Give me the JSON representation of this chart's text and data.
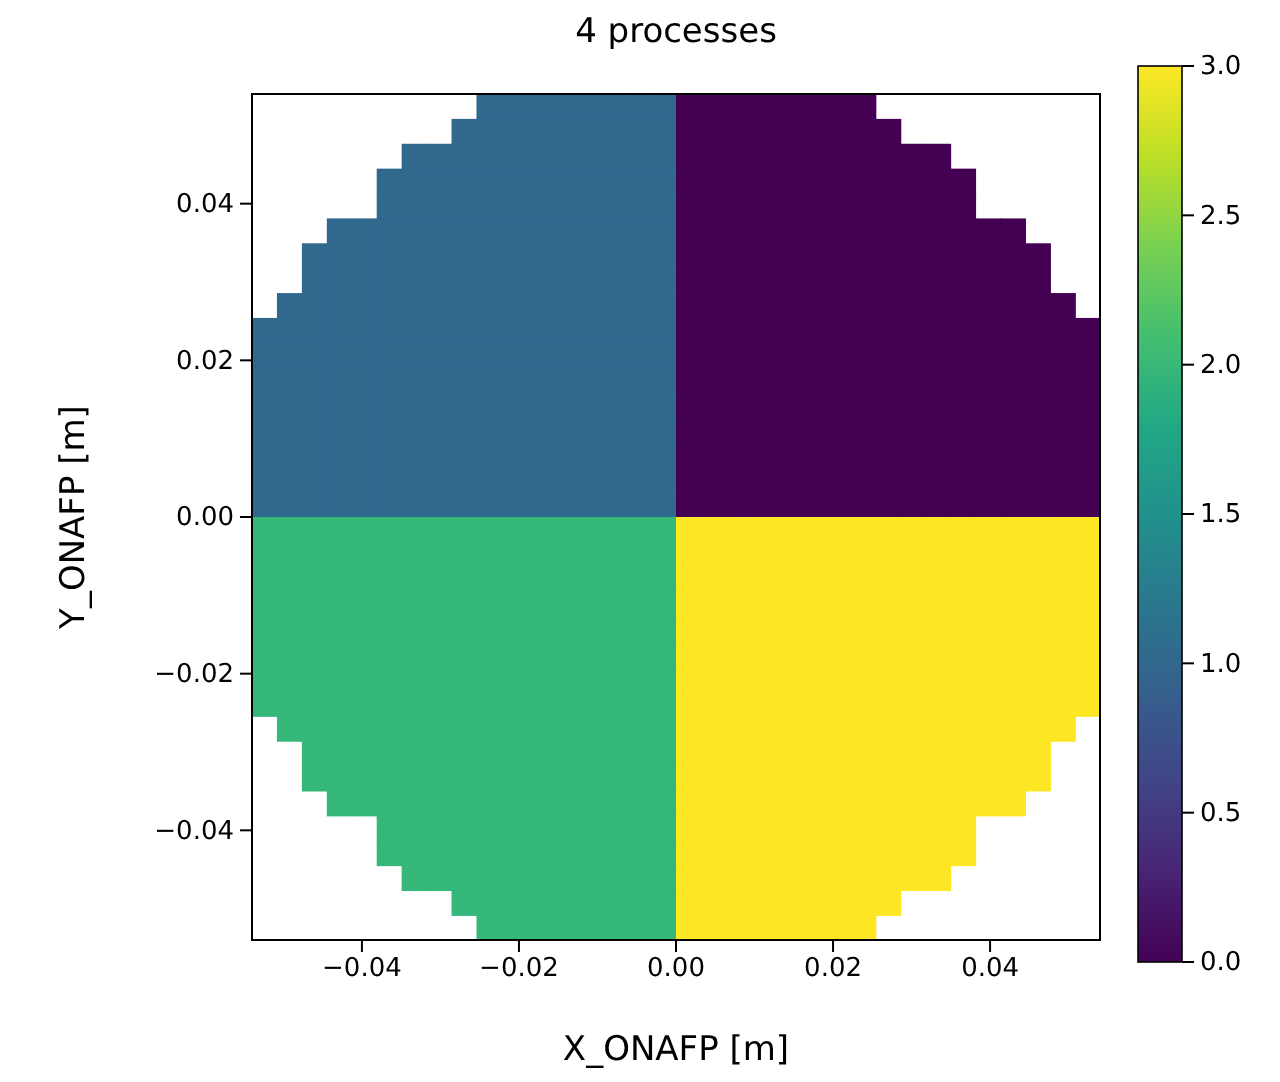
{
  "chart_data": {
    "type": "heatmap",
    "title": "4 processes",
    "xlabel": "X_ONAFP [m]",
    "ylabel": "Y_ONAFP [m]",
    "xlim": [
      -0.054,
      0.054
    ],
    "ylim": [
      -0.054,
      0.054
    ],
    "xticks": [
      {
        "value": -0.04,
        "label": "−0.04"
      },
      {
        "value": -0.02,
        "label": "−0.02"
      },
      {
        "value": 0,
        "label": "0.00"
      },
      {
        "value": 0.02,
        "label": "0.02"
      },
      {
        "value": 0.04,
        "label": "0.04"
      }
    ],
    "yticks": [
      {
        "value": -0.04,
        "label": "−0.04"
      },
      {
        "value": -0.02,
        "label": "−0.02"
      },
      {
        "value": 0,
        "label": "0.00"
      },
      {
        "value": 0.02,
        "label": "0.02"
      },
      {
        "value": 0.04,
        "label": "0.04"
      }
    ],
    "clim": [
      0,
      3
    ],
    "cticks": [
      {
        "value": 0,
        "label": "0.0"
      },
      {
        "value": 0.5,
        "label": "0.5"
      },
      {
        "value": 1,
        "label": "1.0"
      },
      {
        "value": 1.5,
        "label": "1.5"
      },
      {
        "value": 2,
        "label": "2.0"
      },
      {
        "value": 2.5,
        "label": "2.5"
      },
      {
        "value": 3,
        "label": "3.0"
      }
    ],
    "cells": [
      [
        null,
        null,
        null,
        null,
        null,
        null,
        null,
        null,
        null,
        1,
        1,
        1,
        1,
        1,
        1,
        1,
        1,
        0,
        0,
        0,
        0,
        0,
        0,
        0,
        0,
        null,
        null,
        null,
        null,
        null,
        null,
        null,
        null,
        null
      ],
      [
        null,
        null,
        null,
        null,
        null,
        null,
        null,
        null,
        1,
        1,
        1,
        1,
        1,
        1,
        1,
        1,
        1,
        0,
        0,
        0,
        0,
        0,
        0,
        0,
        0,
        0,
        null,
        null,
        null,
        null,
        null,
        null,
        null,
        null
      ],
      [
        null,
        null,
        null,
        null,
        null,
        null,
        1,
        1,
        1,
        1,
        1,
        1,
        1,
        1,
        1,
        1,
        1,
        0,
        0,
        0,
        0,
        0,
        0,
        0,
        0,
        0,
        0,
        0,
        null,
        null,
        null,
        null,
        null,
        null
      ],
      [
        null,
        null,
        null,
        null,
        null,
        1,
        1,
        1,
        1,
        1,
        1,
        1,
        1,
        1,
        1,
        1,
        1,
        0,
        0,
        0,
        0,
        0,
        0,
        0,
        0,
        0,
        0,
        0,
        0,
        null,
        null,
        null,
        null,
        null
      ],
      [
        null,
        null,
        null,
        null,
        null,
        1,
        1,
        1,
        1,
        1,
        1,
        1,
        1,
        1,
        1,
        1,
        1,
        0,
        0,
        0,
        0,
        0,
        0,
        0,
        0,
        0,
        0,
        0,
        0,
        null,
        null,
        null,
        null,
        null
      ],
      [
        null,
        null,
        null,
        1,
        1,
        1,
        1,
        1,
        1,
        1,
        1,
        1,
        1,
        1,
        1,
        1,
        1,
        0,
        0,
        0,
        0,
        0,
        0,
        0,
        0,
        0,
        0,
        0,
        0,
        0,
        0,
        null,
        null,
        null
      ],
      [
        null,
        null,
        1,
        1,
        1,
        1,
        1,
        1,
        1,
        1,
        1,
        1,
        1,
        1,
        1,
        1,
        1,
        0,
        0,
        0,
        0,
        0,
        0,
        0,
        0,
        0,
        0,
        0,
        0,
        0,
        0,
        0,
        null,
        null
      ],
      [
        null,
        null,
        1,
        1,
        1,
        1,
        1,
        1,
        1,
        1,
        1,
        1,
        1,
        1,
        1,
        1,
        1,
        0,
        0,
        0,
        0,
        0,
        0,
        0,
        0,
        0,
        0,
        0,
        0,
        0,
        0,
        0,
        null,
        null
      ],
      [
        null,
        1,
        1,
        1,
        1,
        1,
        1,
        1,
        1,
        1,
        1,
        1,
        1,
        1,
        1,
        1,
        1,
        0,
        0,
        0,
        0,
        0,
        0,
        0,
        0,
        0,
        0,
        0,
        0,
        0,
        0,
        0,
        0,
        null
      ],
      [
        1,
        1,
        1,
        1,
        1,
        1,
        1,
        1,
        1,
        1,
        1,
        1,
        1,
        1,
        1,
        1,
        1,
        0,
        0,
        0,
        0,
        0,
        0,
        0,
        0,
        0,
        0,
        0,
        0,
        0,
        0,
        0,
        0,
        0
      ],
      [
        1,
        1,
        1,
        1,
        1,
        1,
        1,
        1,
        1,
        1,
        1,
        1,
        1,
        1,
        1,
        1,
        1,
        0,
        0,
        0,
        0,
        0,
        0,
        0,
        0,
        0,
        0,
        0,
        0,
        0,
        0,
        0,
        0,
        0
      ],
      [
        1,
        1,
        1,
        1,
        1,
        1,
        1,
        1,
        1,
        1,
        1,
        1,
        1,
        1,
        1,
        1,
        1,
        0,
        0,
        0,
        0,
        0,
        0,
        0,
        0,
        0,
        0,
        0,
        0,
        0,
        0,
        0,
        0,
        0
      ],
      [
        1,
        1,
        1,
        1,
        1,
        1,
        1,
        1,
        1,
        1,
        1,
        1,
        1,
        1,
        1,
        1,
        1,
        0,
        0,
        0,
        0,
        0,
        0,
        0,
        0,
        0,
        0,
        0,
        0,
        0,
        0,
        0,
        0,
        0
      ],
      [
        1,
        1,
        1,
        1,
        1,
        1,
        1,
        1,
        1,
        1,
        1,
        1,
        1,
        1,
        1,
        1,
        1,
        0,
        0,
        0,
        0,
        0,
        0,
        0,
        0,
        0,
        0,
        0,
        0,
        0,
        0,
        0,
        0,
        0
      ],
      [
        1,
        1,
        1,
        1,
        1,
        1,
        1,
        1,
        1,
        1,
        1,
        1,
        1,
        1,
        1,
        1,
        1,
        0,
        0,
        0,
        0,
        0,
        0,
        0,
        0,
        0,
        0,
        0,
        0,
        0,
        0,
        0,
        0,
        0
      ],
      [
        1,
        1,
        1,
        1,
        1,
        1,
        1,
        1,
        1,
        1,
        1,
        1,
        1,
        1,
        1,
        1,
        1,
        0,
        0,
        0,
        0,
        0,
        0,
        0,
        0,
        0,
        0,
        0,
        0,
        0,
        0,
        0,
        0,
        0
      ],
      [
        1,
        1,
        1,
        1,
        1,
        1,
        1,
        1,
        1,
        1,
        1,
        1,
        1,
        1,
        1,
        1,
        1,
        0,
        0,
        0,
        0,
        0,
        0,
        0,
        0,
        0,
        0,
        0,
        0,
        0,
        0,
        0,
        0,
        0
      ],
      [
        2,
        2,
        2,
        2,
        2,
        2,
        2,
        2,
        2,
        2,
        2,
        2,
        2,
        2,
        2,
        2,
        2,
        3,
        3,
        3,
        3,
        3,
        3,
        3,
        3,
        3,
        3,
        3,
        3,
        3,
        3,
        3,
        3,
        3
      ],
      [
        2,
        2,
        2,
        2,
        2,
        2,
        2,
        2,
        2,
        2,
        2,
        2,
        2,
        2,
        2,
        2,
        2,
        3,
        3,
        3,
        3,
        3,
        3,
        3,
        3,
        3,
        3,
        3,
        3,
        3,
        3,
        3,
        3,
        3
      ],
      [
        2,
        2,
        2,
        2,
        2,
        2,
        2,
        2,
        2,
        2,
        2,
        2,
        2,
        2,
        2,
        2,
        2,
        3,
        3,
        3,
        3,
        3,
        3,
        3,
        3,
        3,
        3,
        3,
        3,
        3,
        3,
        3,
        3,
        3
      ],
      [
        2,
        2,
        2,
        2,
        2,
        2,
        2,
        2,
        2,
        2,
        2,
        2,
        2,
        2,
        2,
        2,
        2,
        3,
        3,
        3,
        3,
        3,
        3,
        3,
        3,
        3,
        3,
        3,
        3,
        3,
        3,
        3,
        3,
        3
      ],
      [
        2,
        2,
        2,
        2,
        2,
        2,
        2,
        2,
        2,
        2,
        2,
        2,
        2,
        2,
        2,
        2,
        2,
        3,
        3,
        3,
        3,
        3,
        3,
        3,
        3,
        3,
        3,
        3,
        3,
        3,
        3,
        3,
        3,
        3
      ],
      [
        2,
        2,
        2,
        2,
        2,
        2,
        2,
        2,
        2,
        2,
        2,
        2,
        2,
        2,
        2,
        2,
        2,
        3,
        3,
        3,
        3,
        3,
        3,
        3,
        3,
        3,
        3,
        3,
        3,
        3,
        3,
        3,
        3,
        3
      ],
      [
        2,
        2,
        2,
        2,
        2,
        2,
        2,
        2,
        2,
        2,
        2,
        2,
        2,
        2,
        2,
        2,
        2,
        3,
        3,
        3,
        3,
        3,
        3,
        3,
        3,
        3,
        3,
        3,
        3,
        3,
        3,
        3,
        3,
        3
      ],
      [
        2,
        2,
        2,
        2,
        2,
        2,
        2,
        2,
        2,
        2,
        2,
        2,
        2,
        2,
        2,
        2,
        2,
        3,
        3,
        3,
        3,
        3,
        3,
        3,
        3,
        3,
        3,
        3,
        3,
        3,
        3,
        3,
        3,
        3
      ],
      [
        null,
        2,
        2,
        2,
        2,
        2,
        2,
        2,
        2,
        2,
        2,
        2,
        2,
        2,
        2,
        2,
        2,
        3,
        3,
        3,
        3,
        3,
        3,
        3,
        3,
        3,
        3,
        3,
        3,
        3,
        3,
        3,
        3,
        null
      ],
      [
        null,
        null,
        2,
        2,
        2,
        2,
        2,
        2,
        2,
        2,
        2,
        2,
        2,
        2,
        2,
        2,
        2,
        3,
        3,
        3,
        3,
        3,
        3,
        3,
        3,
        3,
        3,
        3,
        3,
        3,
        3,
        3,
        null,
        null
      ],
      [
        null,
        null,
        2,
        2,
        2,
        2,
        2,
        2,
        2,
        2,
        2,
        2,
        2,
        2,
        2,
        2,
        2,
        3,
        3,
        3,
        3,
        3,
        3,
        3,
        3,
        3,
        3,
        3,
        3,
        3,
        3,
        3,
        null,
        null
      ],
      [
        null,
        null,
        null,
        2,
        2,
        2,
        2,
        2,
        2,
        2,
        2,
        2,
        2,
        2,
        2,
        2,
        2,
        3,
        3,
        3,
        3,
        3,
        3,
        3,
        3,
        3,
        3,
        3,
        3,
        3,
        3,
        null,
        null,
        null
      ],
      [
        null,
        null,
        null,
        null,
        null,
        2,
        2,
        2,
        2,
        2,
        2,
        2,
        2,
        2,
        2,
        2,
        2,
        3,
        3,
        3,
        3,
        3,
        3,
        3,
        3,
        3,
        3,
        3,
        3,
        null,
        null,
        null,
        null,
        null
      ],
      [
        null,
        null,
        null,
        null,
        null,
        2,
        2,
        2,
        2,
        2,
        2,
        2,
        2,
        2,
        2,
        2,
        2,
        3,
        3,
        3,
        3,
        3,
        3,
        3,
        3,
        3,
        3,
        3,
        3,
        null,
        null,
        null,
        null,
        null
      ],
      [
        null,
        null,
        null,
        null,
        null,
        null,
        2,
        2,
        2,
        2,
        2,
        2,
        2,
        2,
        2,
        2,
        2,
        3,
        3,
        3,
        3,
        3,
        3,
        3,
        3,
        3,
        3,
        3,
        null,
        null,
        null,
        null,
        null,
        null
      ],
      [
        null,
        null,
        null,
        null,
        null,
        null,
        null,
        null,
        2,
        2,
        2,
        2,
        2,
        2,
        2,
        2,
        2,
        3,
        3,
        3,
        3,
        3,
        3,
        3,
        3,
        3,
        null,
        null,
        null,
        null,
        null,
        null,
        null,
        null
      ],
      [
        null,
        null,
        null,
        null,
        null,
        null,
        null,
        null,
        null,
        2,
        2,
        2,
        2,
        2,
        2,
        2,
        2,
        3,
        3,
        3,
        3,
        3,
        3,
        3,
        3,
        null,
        null,
        null,
        null,
        null,
        null,
        null,
        null,
        null
      ]
    ]
  }
}
